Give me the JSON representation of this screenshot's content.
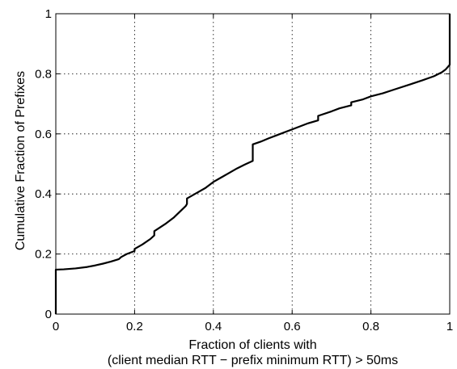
{
  "chart_data": {
    "type": "line",
    "title": "",
    "xlabel_lines": [
      "Fraction of clients with",
      "(client median RTT − prefix minimum RTT) > 50ms"
    ],
    "ylabel": "Cumulative Fraction of Prefixes",
    "xlim": [
      0,
      1
    ],
    "ylim": [
      0,
      1
    ],
    "x_ticks": [
      0,
      0.2,
      0.4,
      0.6,
      0.8,
      1
    ],
    "y_ticks": [
      0,
      0.2,
      0.4,
      0.6,
      0.8,
      1
    ],
    "x_tick_labels": [
      "0",
      "0.2",
      "0.4",
      "0.6",
      "0.8",
      "1"
    ],
    "y_tick_labels": [
      "0",
      "0.2",
      "0.4",
      "0.6",
      "0.8",
      "1"
    ],
    "grid": true,
    "line_color": "#000000",
    "series": [
      {
        "x": [
          0,
          0,
          0.02,
          0.05,
          0.08,
          0.1,
          0.12,
          0.14,
          0.16,
          0.166,
          0.18,
          0.2,
          0.2,
          0.22,
          0.24,
          0.25,
          0.25,
          0.28,
          0.3,
          0.33,
          0.333,
          0.333,
          0.36,
          0.38,
          0.4,
          0.42,
          0.44,
          0.46,
          0.48,
          0.5,
          0.5,
          0.52,
          0.54,
          0.56,
          0.58,
          0.6,
          0.62,
          0.64,
          0.666,
          0.666,
          0.7,
          0.72,
          0.75,
          0.75,
          0.78,
          0.8,
          0.83,
          0.86,
          0.9,
          0.93,
          0.96,
          0.98,
          0.99,
          1.0,
          1.0
        ],
        "y": [
          0,
          0.148,
          0.149,
          0.152,
          0.157,
          0.162,
          0.168,
          0.175,
          0.183,
          0.19,
          0.2,
          0.21,
          0.217,
          0.232,
          0.25,
          0.262,
          0.276,
          0.302,
          0.322,
          0.36,
          0.367,
          0.385,
          0.405,
          0.42,
          0.44,
          0.455,
          0.47,
          0.485,
          0.498,
          0.51,
          0.565,
          0.574,
          0.585,
          0.595,
          0.605,
          0.615,
          0.625,
          0.635,
          0.645,
          0.66,
          0.675,
          0.685,
          0.695,
          0.705,
          0.715,
          0.725,
          0.735,
          0.748,
          0.765,
          0.778,
          0.792,
          0.805,
          0.815,
          0.83,
          1.0
        ]
      }
    ]
  }
}
